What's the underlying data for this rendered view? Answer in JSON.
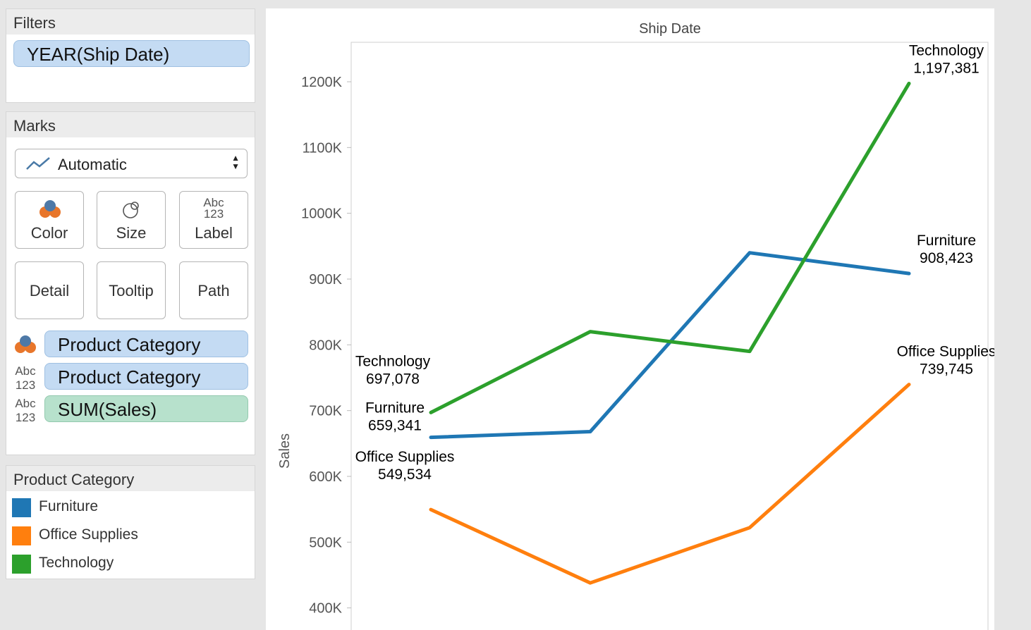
{
  "filters": {
    "title": "Filters",
    "pills": [
      {
        "label": "YEAR(Ship Date)"
      }
    ]
  },
  "marks": {
    "title": "Marks",
    "mark_type": "Automatic",
    "mark_type_icon": "line-chart-icon",
    "buttons": {
      "color": "Color",
      "size": "Size",
      "label": "Label",
      "label_icon_text": [
        "Abc",
        "123"
      ],
      "detail": "Detail",
      "tooltip": "Tooltip",
      "path": "Path"
    },
    "shelf": [
      {
        "icon": "color-icon",
        "label": "Product Category",
        "kind": "dimension"
      },
      {
        "icon": "label-icon",
        "icon_text": [
          "Abc",
          "123"
        ],
        "label": "Product Category",
        "kind": "dimension"
      },
      {
        "icon": "label-icon",
        "icon_text": [
          "Abc",
          "123"
        ],
        "label": "SUM(Sales)",
        "kind": "measure"
      }
    ]
  },
  "legend": {
    "title": "Product Category",
    "items": [
      {
        "label": "Furniture",
        "color": "#1f77b4"
      },
      {
        "label": "Office Supplies",
        "color": "#ff7f0e"
      },
      {
        "label": "Technology",
        "color": "#2ca02c"
      }
    ]
  },
  "chart_data": {
    "type": "line",
    "title": "Ship Date",
    "ylabel": "Sales",
    "ylim": [
      360000,
      1260000
    ],
    "yticks": [
      400000,
      500000,
      600000,
      700000,
      800000,
      900000,
      1000000,
      1100000,
      1200000
    ],
    "ytick_labels": [
      "400K",
      "500K",
      "600K",
      "700K",
      "800K",
      "900K",
      "1000K",
      "1100K",
      "1200K"
    ],
    "categories": [
      "",
      "",
      "",
      ""
    ],
    "grid": false,
    "series": [
      {
        "name": "Furniture",
        "color": "#1f77b4",
        "values": [
          659341,
          668000,
          940000,
          908423
        ],
        "start_label": [
          "Furniture",
          "659,341"
        ],
        "end_label": [
          "Furniture",
          "908,423"
        ]
      },
      {
        "name": "Office Supplies",
        "color": "#ff7f0e",
        "values": [
          549534,
          438000,
          522000,
          739745
        ],
        "start_label": [
          "Office Supplies",
          "549,534"
        ],
        "end_label": [
          "Office Supplies",
          "739,745"
        ]
      },
      {
        "name": "Technology",
        "color": "#2ca02c",
        "values": [
          697078,
          820000,
          790000,
          1197381
        ],
        "start_label": [
          "Technology",
          "697,078"
        ],
        "end_label": [
          "Technology",
          "1,197,381"
        ]
      }
    ]
  }
}
